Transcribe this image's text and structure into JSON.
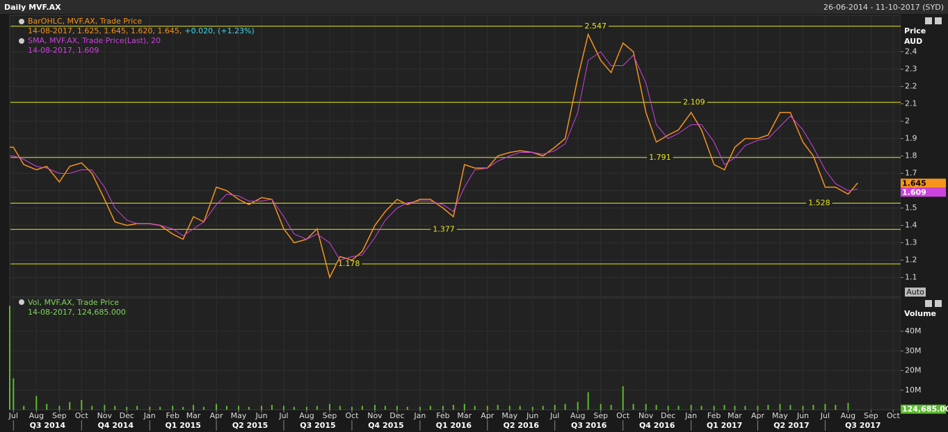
{
  "header": {
    "title": "Daily MVF.AX",
    "range": "26-06-2014 - 11-10-2017 (SYD)"
  },
  "chart_data": [
    {
      "type": "line",
      "x": [
        "2014-06-26",
        "2014-07-01",
        "2014-07-15",
        "2014-08-01",
        "2014-08-15",
        "2014-09-01",
        "2014-09-15",
        "2014-10-01",
        "2014-10-15",
        "2014-11-01",
        "2014-11-15",
        "2014-12-01",
        "2014-12-15",
        "2015-01-01",
        "2015-01-15",
        "2015-02-01",
        "2015-02-15",
        "2015-03-01",
        "2015-03-15",
        "2015-04-01",
        "2015-04-15",
        "2015-05-01",
        "2015-05-15",
        "2015-06-01",
        "2015-06-15",
        "2015-07-01",
        "2015-07-15",
        "2015-08-01",
        "2015-08-15",
        "2015-09-01",
        "2015-09-15",
        "2015-10-01",
        "2015-10-15",
        "2015-11-01",
        "2015-11-15",
        "2015-12-01",
        "2015-12-15",
        "2016-01-01",
        "2016-01-15",
        "2016-02-01",
        "2016-02-15",
        "2016-03-01",
        "2016-03-15",
        "2016-04-01",
        "2016-04-15",
        "2016-05-01",
        "2016-05-15",
        "2016-06-01",
        "2016-06-15",
        "2016-07-01",
        "2016-07-15",
        "2016-08-01",
        "2016-08-15",
        "2016-09-01",
        "2016-09-15",
        "2016-10-01",
        "2016-10-15",
        "2016-11-01",
        "2016-11-15",
        "2016-12-01",
        "2016-12-15",
        "2017-01-01",
        "2017-01-15",
        "2017-02-01",
        "2017-02-15",
        "2017-03-01",
        "2017-03-15",
        "2017-04-01",
        "2017-04-15",
        "2017-05-01",
        "2017-05-15",
        "2017-06-01",
        "2017-06-15",
        "2017-07-01",
        "2017-07-15",
        "2017-08-01",
        "2017-08-14"
      ],
      "xlim": [
        "2014-06-26",
        "2017-10-11"
      ],
      "ylim": [
        0.99,
        2.61
      ],
      "yticks": [
        1.1,
        1.2,
        1.3,
        1.4,
        1.5,
        1.6,
        1.7,
        1.8,
        1.9,
        2,
        2.1,
        2.2,
        2.3,
        2.4
      ],
      "ylabel": "Price",
      "yunit": "AUD",
      "scale_button": "Auto",
      "grid": true,
      "series": [
        {
          "name": "BarOHLC, MVF.AX, Trade Price",
          "color": "#f7941d",
          "readout": "14-08-2017, 1.625, 1.645, 1.620, 1.645,",
          "change": "+0.020, (+1.23%)",
          "change_color": "#3fd8e8",
          "last": 1.645,
          "values": [
            1.85,
            1.85,
            1.75,
            1.72,
            1.74,
            1.65,
            1.74,
            1.76,
            1.7,
            1.55,
            1.42,
            1.4,
            1.41,
            1.41,
            1.4,
            1.35,
            1.32,
            1.45,
            1.42,
            1.62,
            1.6,
            1.55,
            1.52,
            1.56,
            1.55,
            1.38,
            1.3,
            1.32,
            1.38,
            1.1,
            1.22,
            1.2,
            1.25,
            1.4,
            1.48,
            1.55,
            1.52,
            1.55,
            1.55,
            1.5,
            1.45,
            1.75,
            1.73,
            1.73,
            1.8,
            1.82,
            1.83,
            1.82,
            1.8,
            1.85,
            1.9,
            2.25,
            2.5,
            2.35,
            2.28,
            2.45,
            2.4,
            2.05,
            1.88,
            1.92,
            1.95,
            2.05,
            1.95,
            1.75,
            1.72,
            1.85,
            1.9,
            1.9,
            1.92,
            2.05,
            2.05,
            1.88,
            1.8,
            1.62,
            1.62,
            1.58,
            1.645
          ]
        },
        {
          "name": "SMA, MVF.AX, Trade Price(Last),  20",
          "color": "#cc44dd",
          "readout": "14-08-2017, 1.609",
          "last": 1.609,
          "values": [
            1.8,
            1.8,
            1.78,
            1.74,
            1.73,
            1.7,
            1.7,
            1.72,
            1.72,
            1.62,
            1.5,
            1.43,
            1.41,
            1.41,
            1.4,
            1.38,
            1.34,
            1.38,
            1.42,
            1.52,
            1.58,
            1.57,
            1.54,
            1.54,
            1.55,
            1.45,
            1.35,
            1.32,
            1.35,
            1.3,
            1.2,
            1.22,
            1.23,
            1.33,
            1.43,
            1.5,
            1.53,
            1.54,
            1.54,
            1.52,
            1.48,
            1.62,
            1.72,
            1.73,
            1.77,
            1.8,
            1.82,
            1.82,
            1.81,
            1.83,
            1.87,
            2.05,
            2.35,
            2.4,
            2.32,
            2.32,
            2.38,
            2.22,
            1.98,
            1.9,
            1.93,
            1.98,
            1.98,
            1.88,
            1.75,
            1.79,
            1.86,
            1.89,
            1.9,
            1.97,
            2.03,
            1.95,
            1.85,
            1.72,
            1.64,
            1.6,
            1.609
          ]
        }
      ],
      "hline_color": "#e8e820",
      "hlines": [
        {
          "value": 2.547,
          "at": "2016-08-25"
        },
        {
          "value": 2.109,
          "at": "2017-01-05"
        },
        {
          "value": 1.791,
          "at": "2016-11-20"
        },
        {
          "value": 1.528,
          "at": "2017-06-23"
        },
        {
          "value": 1.377,
          "at": "2016-02-02"
        },
        {
          "value": 1.178,
          "at": "2015-09-27"
        }
      ]
    },
    {
      "type": "bar",
      "x": [
        "2014-06-26",
        "2014-07-01",
        "2014-07-15",
        "2014-08-01",
        "2014-08-15",
        "2014-09-01",
        "2014-09-15",
        "2014-10-01",
        "2014-10-15",
        "2014-11-01",
        "2014-11-15",
        "2014-12-01",
        "2014-12-15",
        "2015-01-01",
        "2015-01-15",
        "2015-02-01",
        "2015-02-15",
        "2015-03-01",
        "2015-03-15",
        "2015-04-01",
        "2015-04-15",
        "2015-05-01",
        "2015-05-15",
        "2015-06-01",
        "2015-06-15",
        "2015-07-01",
        "2015-07-15",
        "2015-08-01",
        "2015-08-15",
        "2015-09-01",
        "2015-09-15",
        "2015-10-01",
        "2015-10-15",
        "2015-11-01",
        "2015-11-15",
        "2015-12-01",
        "2015-12-15",
        "2016-01-01",
        "2016-01-15",
        "2016-02-01",
        "2016-02-15",
        "2016-03-01",
        "2016-03-15",
        "2016-04-01",
        "2016-04-15",
        "2016-05-01",
        "2016-05-15",
        "2016-06-01",
        "2016-06-15",
        "2016-07-01",
        "2016-07-15",
        "2016-08-01",
        "2016-08-15",
        "2016-09-01",
        "2016-09-15",
        "2016-10-01",
        "2016-10-15",
        "2016-11-01",
        "2016-11-15",
        "2016-12-01",
        "2016-12-15",
        "2017-01-01",
        "2017-01-15",
        "2017-02-01",
        "2017-02-15",
        "2017-03-01",
        "2017-03-15",
        "2017-04-01",
        "2017-04-15",
        "2017-05-01",
        "2017-05-15",
        "2017-06-01",
        "2017-06-15",
        "2017-07-01",
        "2017-07-15",
        "2017-08-01",
        "2017-08-14"
      ],
      "xlim": [
        "2014-06-26",
        "2017-10-11"
      ],
      "name": "Vol, MVF.AX, Trade Price",
      "readout": "14-08-2017, 124,685.000",
      "ylabel": "Volume",
      "color": "#5cbd2c",
      "readout_color": "#7ed957",
      "ylim": [
        0,
        57000000
      ],
      "yticks": [
        {
          "value": 10000000,
          "label": "10M"
        },
        {
          "value": 20000000,
          "label": "20M"
        },
        {
          "value": 30000000,
          "label": "30M"
        },
        {
          "value": 40000000,
          "label": "40M"
        }
      ],
      "last": {
        "value": 124685,
        "label": "124,685.00"
      },
      "values": [
        53000000,
        16000000,
        2000000,
        7000000,
        3000000,
        2000000,
        4000000,
        5000000,
        2000000,
        2500000,
        2000000,
        1500000,
        2000000,
        1500000,
        1500000,
        2000000,
        1500000,
        2500000,
        1500000,
        3000000,
        2000000,
        2000000,
        1500000,
        2000000,
        2500000,
        2000000,
        1500000,
        1500000,
        2000000,
        3000000,
        2000000,
        1500000,
        2000000,
        2500000,
        2000000,
        2000000,
        1500000,
        1500000,
        2000000,
        2000000,
        2500000,
        3000000,
        2000000,
        2000000,
        2500000,
        2000000,
        2000000,
        1500000,
        2000000,
        2500000,
        3000000,
        4000000,
        9000000,
        3000000,
        2500000,
        12000000,
        3000000,
        3000000,
        2500000,
        2000000,
        2000000,
        2500000,
        2000000,
        2000000,
        2500000,
        2000000,
        2000000,
        2000000,
        2500000,
        3000000,
        2500000,
        2000000,
        2500000,
        3000000,
        2500000,
        3500000,
        124685
      ]
    }
  ],
  "xticks": [
    {
      "value": "2014-07-01",
      "label": "Jul"
    },
    {
      "value": "2014-08-01",
      "label": "Aug"
    },
    {
      "value": "2014-09-01",
      "label": "Sep"
    },
    {
      "value": "2014-10-01",
      "label": "Oct"
    },
    {
      "value": "2014-11-01",
      "label": "Nov"
    },
    {
      "value": "2014-12-01",
      "label": "Dec"
    },
    {
      "value": "2015-01-01",
      "label": "Jan"
    },
    {
      "value": "2015-02-01",
      "label": "Feb"
    },
    {
      "value": "2015-03-01",
      "label": "Mar"
    },
    {
      "value": "2015-04-01",
      "label": "Apr"
    },
    {
      "value": "2015-05-01",
      "label": "May"
    },
    {
      "value": "2015-06-01",
      "label": "Jun"
    },
    {
      "value": "2015-07-01",
      "label": "Jul"
    },
    {
      "value": "2015-08-01",
      "label": "Aug"
    },
    {
      "value": "2015-09-01",
      "label": "Sep"
    },
    {
      "value": "2015-10-01",
      "label": "Oct"
    },
    {
      "value": "2015-11-01",
      "label": "Nov"
    },
    {
      "value": "2015-12-01",
      "label": "Dec"
    },
    {
      "value": "2016-01-01",
      "label": "Jan"
    },
    {
      "value": "2016-02-01",
      "label": "Feb"
    },
    {
      "value": "2016-03-01",
      "label": "Mar"
    },
    {
      "value": "2016-04-01",
      "label": "Apr"
    },
    {
      "value": "2016-05-01",
      "label": "May"
    },
    {
      "value": "2016-06-01",
      "label": "Jun"
    },
    {
      "value": "2016-07-01",
      "label": "Jul"
    },
    {
      "value": "2016-08-01",
      "label": "Aug"
    },
    {
      "value": "2016-09-01",
      "label": "Sep"
    },
    {
      "value": "2016-10-01",
      "label": "Oct"
    },
    {
      "value": "2016-11-01",
      "label": "Nov"
    },
    {
      "value": "2016-12-01",
      "label": "Dec"
    },
    {
      "value": "2017-01-01",
      "label": "Jan"
    },
    {
      "value": "2017-02-01",
      "label": "Feb"
    },
    {
      "value": "2017-03-01",
      "label": "Mar"
    },
    {
      "value": "2017-04-01",
      "label": "Apr"
    },
    {
      "value": "2017-05-01",
      "label": "May"
    },
    {
      "value": "2017-06-01",
      "label": "Jun"
    },
    {
      "value": "2017-07-01",
      "label": "Jul"
    },
    {
      "value": "2017-08-01",
      "label": "Aug"
    },
    {
      "value": "2017-09-01",
      "label": "Sep"
    },
    {
      "value": "2017-10-01",
      "label": "Oct"
    }
  ],
  "quarters": [
    {
      "value": "2014-07-01",
      "label": "Q3 2014"
    },
    {
      "value": "2014-10-01",
      "label": "Q4 2014"
    },
    {
      "value": "2015-01-01",
      "label": "Q1 2015"
    },
    {
      "value": "2015-04-01",
      "label": "Q2 2015"
    },
    {
      "value": "2015-07-01",
      "label": "Q3 2015"
    },
    {
      "value": "2015-10-01",
      "label": "Q4 2015"
    },
    {
      "value": "2016-01-01",
      "label": "Q1 2016"
    },
    {
      "value": "2016-04-01",
      "label": "Q2 2016"
    },
    {
      "value": "2016-07-01",
      "label": "Q3 2016"
    },
    {
      "value": "2016-10-01",
      "label": "Q4 2016"
    },
    {
      "value": "2017-01-01",
      "label": "Q1 2017"
    },
    {
      "value": "2017-04-01",
      "label": "Q2 2017"
    },
    {
      "value": "2017-07-01",
      "label": "Q3 2017"
    }
  ]
}
